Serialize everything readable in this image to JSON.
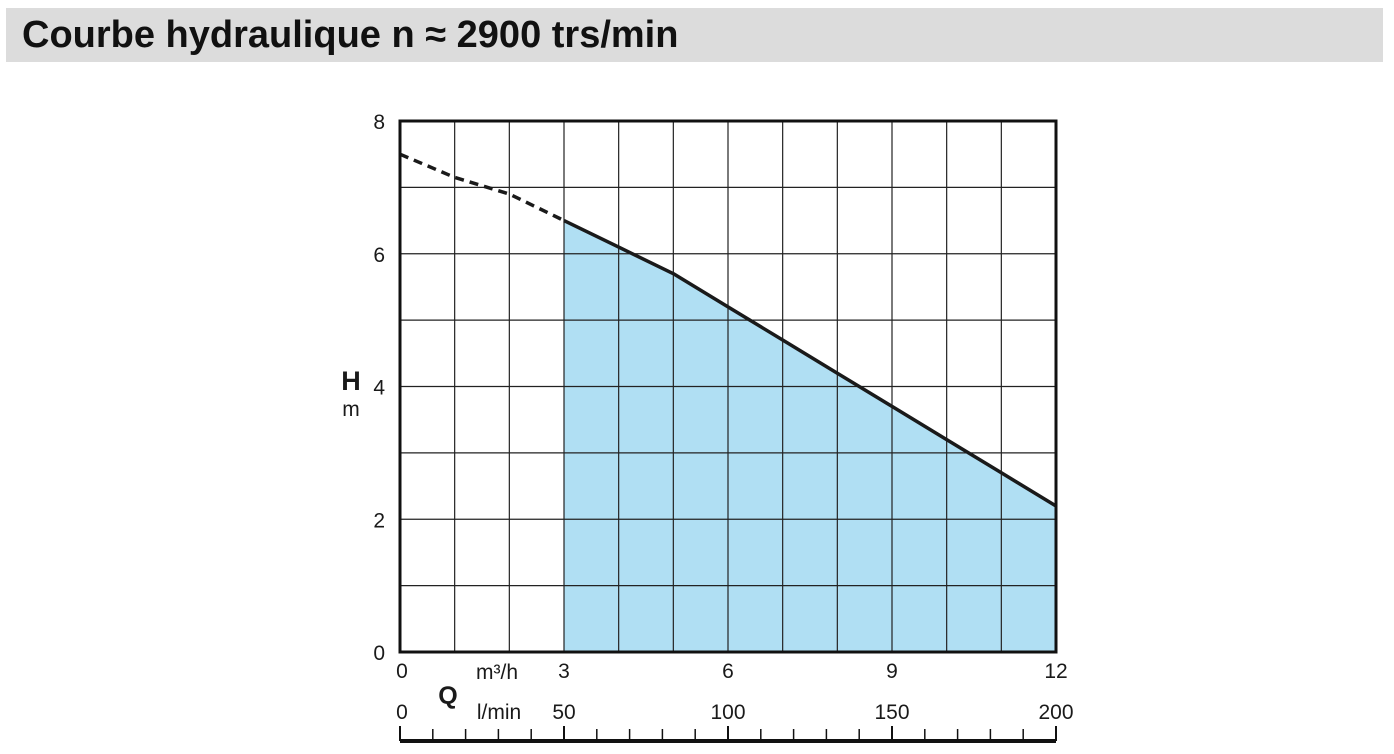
{
  "header": {
    "title": "Courbe hydraulique n ≈ 2900 trs/min"
  },
  "chart_data": {
    "type": "area",
    "title": "Courbe hydraulique n ≈ 2900 trs/min",
    "ylabel": "H",
    "yunit": "m",
    "xlabel": "Q",
    "xunit_primary": "m³/h",
    "xunit_secondary": "l/min",
    "ylim": [
      0,
      8
    ],
    "xlim": [
      0,
      12
    ],
    "y_ticks": [
      "0",
      "2",
      "4",
      "6",
      "8"
    ],
    "x_ticks_primary": [
      {
        "value": 0,
        "label": "0"
      },
      {
        "value": 3,
        "label": "3"
      },
      {
        "value": 6,
        "label": "6"
      },
      {
        "value": 9,
        "label": "9"
      },
      {
        "value": 12,
        "label": "12"
      }
    ],
    "x_ticks_secondary": [
      {
        "value": 0,
        "label": "0"
      },
      {
        "value": 50,
        "label": "50"
      },
      {
        "value": 100,
        "label": "100"
      },
      {
        "value": 150,
        "label": "150"
      },
      {
        "value": 200,
        "label": "200"
      }
    ],
    "grid": true,
    "fill_color": "#b0dff3",
    "line_color": "#1a1a1a",
    "operating_range": [
      3,
      12
    ],
    "series": [
      {
        "style": "dashed",
        "x": [
          0,
          1,
          2,
          3
        ],
        "y": [
          7.5,
          7.15,
          6.9,
          6.5
        ]
      },
      {
        "style": "solid",
        "x": [
          3,
          4,
          5,
          6,
          7,
          8,
          9,
          10,
          11,
          12
        ],
        "y": [
          6.5,
          6.1,
          5.7,
          5.2,
          4.7,
          4.2,
          3.7,
          3.2,
          2.7,
          2.2
        ]
      }
    ]
  }
}
